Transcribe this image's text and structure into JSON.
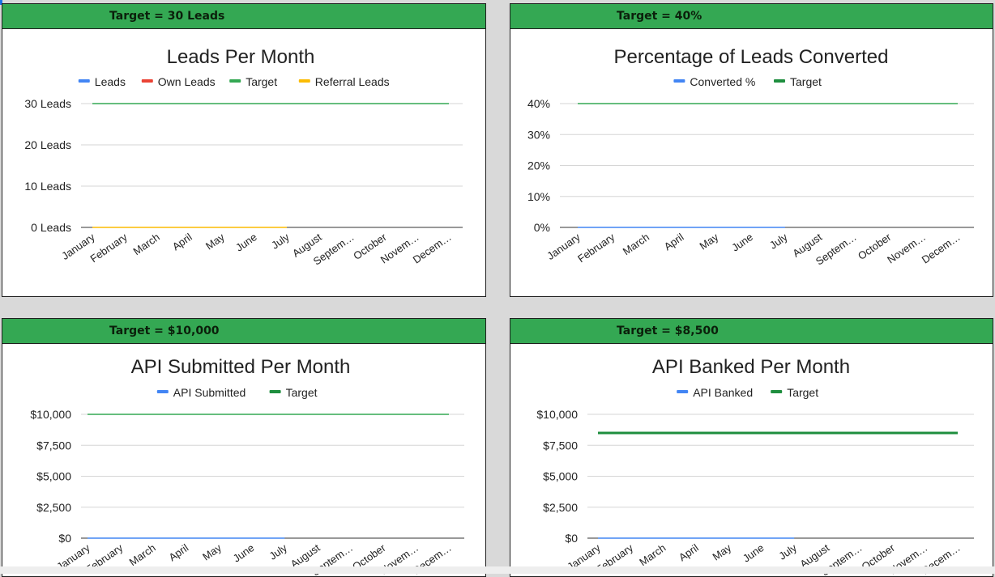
{
  "chart_data": [
    {
      "type": "line",
      "banner": "Target =  30 Leads",
      "title": "Leads Per Month",
      "categories": [
        "January",
        "February",
        "March",
        "April",
        "May",
        "June",
        "July",
        "August",
        "Septem…",
        "October",
        "Novem…",
        "Decem…"
      ],
      "yticks": [
        "0 Leads",
        "10 Leads",
        "20 Leads",
        "30 Leads"
      ],
      "ylim": [
        0,
        30
      ],
      "legend": [
        {
          "name": "Leads",
          "color": "#4285f4"
        },
        {
          "name": "Own Leads",
          "color": "#ea4335"
        },
        {
          "name": "Target",
          "color": "#34a853"
        },
        {
          "name": "Referral Leads",
          "color": "#fbbc04"
        }
      ],
      "series": [
        {
          "name": "Referral Leads",
          "color": "#fbbc04",
          "width": 1.5,
          "values": [
            0,
            0,
            0,
            0,
            0,
            0,
            0,
            null,
            null,
            null,
            null,
            null
          ]
        },
        {
          "name": "Target",
          "color": "#34a853",
          "width": 1.5,
          "values": [
            30,
            30,
            30,
            30,
            30,
            30,
            30,
            30,
            30,
            30,
            30,
            30
          ]
        }
      ],
      "grid": true,
      "legend_position": "top"
    },
    {
      "type": "line",
      "banner": "Target =  40%",
      "title": "Percentage of Leads Converted",
      "categories": [
        "January",
        "February",
        "March",
        "April",
        "May",
        "June",
        "July",
        "August",
        "Septem…",
        "October",
        "Novem…",
        "Decem…"
      ],
      "yticks": [
        "0%",
        "10%",
        "20%",
        "30%",
        "40%"
      ],
      "ylim": [
        0,
        40
      ],
      "legend": [
        {
          "name": "Converted %",
          "color": "#4285f4"
        },
        {
          "name": "Target",
          "color": "#1e8e3e"
        }
      ],
      "series": [
        {
          "name": "Converted %",
          "color": "#4285f4",
          "width": 1.5,
          "values": [
            0,
            0,
            0,
            0,
            0,
            0,
            0,
            null,
            null,
            null,
            null,
            null
          ]
        },
        {
          "name": "Target",
          "color": "#34a853",
          "width": 1.5,
          "values": [
            40,
            40,
            40,
            40,
            40,
            40,
            40,
            40,
            40,
            40,
            40,
            40
          ]
        }
      ],
      "grid": true,
      "legend_position": "top"
    },
    {
      "type": "line",
      "banner": "Target =  $10,000",
      "title": "API Submitted Per Month",
      "categories": [
        "January",
        "February",
        "March",
        "April",
        "May",
        "June",
        "July",
        "August",
        "Septem…",
        "October",
        "Novem…",
        "Decem…"
      ],
      "yticks": [
        "$0",
        "$2,500",
        "$5,000",
        "$7,500",
        "$10,000"
      ],
      "ylim": [
        0,
        10000
      ],
      "legend": [
        {
          "name": "API Submitted",
          "color": "#4285f4"
        },
        {
          "name": "Target",
          "color": "#1e8e3e"
        }
      ],
      "series": [
        {
          "name": "API Submitted",
          "color": "#4285f4",
          "width": 1.5,
          "values": [
            0,
            0,
            0,
            0,
            0,
            0,
            0,
            null,
            null,
            null,
            null,
            null
          ]
        },
        {
          "name": "Target",
          "color": "#34a853",
          "width": 1.5,
          "values": [
            10000,
            10000,
            10000,
            10000,
            10000,
            10000,
            10000,
            10000,
            10000,
            10000,
            10000,
            10000
          ]
        }
      ],
      "grid": true,
      "legend_position": "top"
    },
    {
      "type": "line",
      "banner": "Target =  $8,500",
      "title": "API Banked Per Month",
      "categories": [
        "January",
        "February",
        "March",
        "April",
        "May",
        "June",
        "July",
        "August",
        "Septem…",
        "October",
        "Novem…",
        "Decem…"
      ],
      "yticks": [
        "$0",
        "$2,500",
        "$5,000",
        "$7,500",
        "$10,000"
      ],
      "ylim": [
        0,
        10000
      ],
      "legend": [
        {
          "name": "API Banked",
          "color": "#4285f4"
        },
        {
          "name": "Target",
          "color": "#1e8e3e"
        }
      ],
      "series": [
        {
          "name": "API Banked",
          "color": "#4285f4",
          "width": 1.5,
          "values": [
            0,
            0,
            0,
            0,
            0,
            0,
            0,
            null,
            null,
            null,
            null,
            null
          ]
        },
        {
          "name": "Target",
          "color": "#1e8e3e",
          "width": 3,
          "values": [
            8500,
            8500,
            8500,
            8500,
            8500,
            8500,
            8500,
            8500,
            8500,
            8500,
            8500,
            8500
          ]
        }
      ],
      "grid": true,
      "legend_position": "top"
    }
  ]
}
